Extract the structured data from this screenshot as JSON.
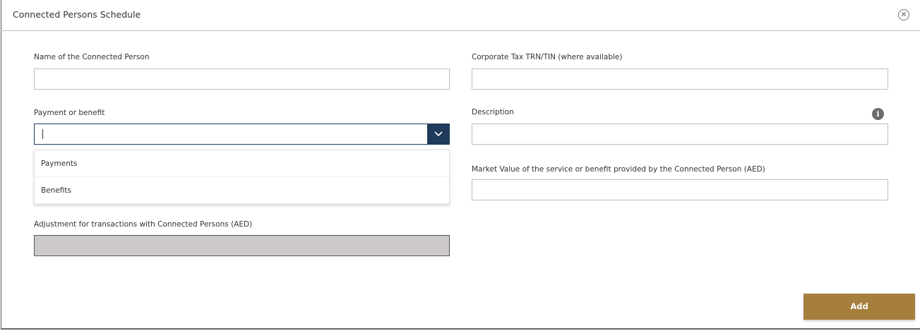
{
  "dialog": {
    "title": "Connected Persons Schedule",
    "close_icon": "close-circle-icon"
  },
  "form": {
    "name_label": "Name of the Connected Person",
    "name_value": "",
    "trn_label": "Corporate Tax TRN/TIN (where available)",
    "trn_value": "",
    "payment_label": "Payment or benefit",
    "payment_value": "",
    "payment_options": [
      "Payments",
      "Benefits"
    ],
    "description_label": "Description",
    "description_value": "",
    "info_icon": "info-icon",
    "market_label": "Market Value of the service or benefit provided by the Connected Person (AED)",
    "market_value": "",
    "adjustment_label": "Adjustment for transactions with Connected Persons (AED)",
    "adjustment_value": ""
  },
  "actions": {
    "add_label": "Add"
  },
  "colors": {
    "accent": "#a67f3c",
    "select_button": "#1f3a5a",
    "disabled_field": "#cdc9c9"
  }
}
